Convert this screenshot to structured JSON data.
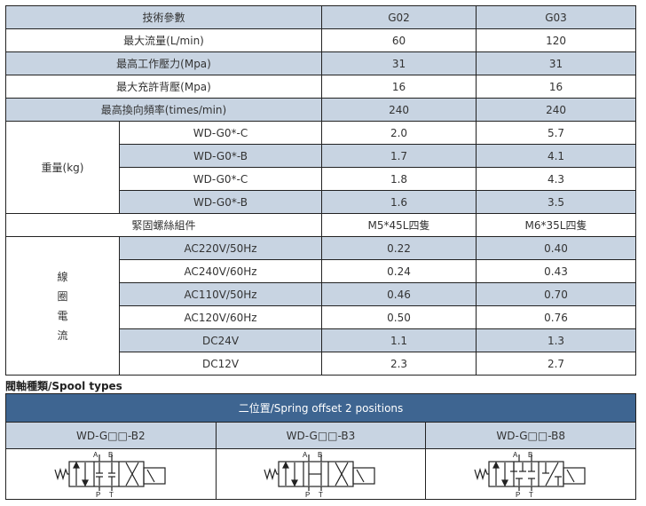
{
  "spec": {
    "header": [
      "技術參數",
      "G02",
      "G03"
    ],
    "rows": [
      {
        "label": "最大流量(L/min)",
        "g02": "60",
        "g03": "120"
      },
      {
        "label": "最高工作壓力(Mpa)",
        "g02": "31",
        "g03": "31"
      },
      {
        "label": "最大充許背壓(Mpa)",
        "g02": "16",
        "g03": "16"
      },
      {
        "label": "最高換向頻率(times/min)",
        "g02": "240",
        "g03": "240"
      }
    ],
    "weight": {
      "label": "重量(kg)",
      "rows": [
        {
          "model": "WD-G0*-C",
          "g02": "2.0",
          "g03": "5.7"
        },
        {
          "model": "WD-G0*-B",
          "g02": "1.7",
          "g03": "4.1"
        },
        {
          "model": "WD-G0*-C",
          "g02": "1.8",
          "g03": "4.3"
        },
        {
          "model": "WD-G0*-B",
          "g02": "1.6",
          "g03": "3.5"
        }
      ]
    },
    "fastener": {
      "label": "緊固螺絲組件",
      "g02": "M5*45L四隻",
      "g03": "M6*35L四隻"
    },
    "coil": {
      "label": [
        "線",
        "圈",
        "電",
        "流"
      ],
      "rows": [
        {
          "v": "AC220V/50Hz",
          "g02": "0.22",
          "g03": "0.40"
        },
        {
          "v": "AC240V/60Hz",
          "g02": "0.24",
          "g03": "0.43"
        },
        {
          "v": "AC110V/50Hz",
          "g02": "0.46",
          "g03": "0.70"
        },
        {
          "v": "AC120V/60Hz",
          "g02": "0.50",
          "g03": "0.76"
        },
        {
          "v": "DC24V",
          "g02": "1.1",
          "g03": "1.3"
        },
        {
          "v": "DC12V",
          "g02": "2.3",
          "g03": "2.7"
        }
      ]
    }
  },
  "spool": {
    "title": "閥軸種類/Spool types",
    "header": "二位置/Spring offset 2 positions",
    "types": [
      "WD-G□□-B2",
      "WD-G□□-B3",
      "WD-G□□-B8"
    ],
    "ports": {
      "a": "A",
      "b": "B",
      "p": "P",
      "t": "T"
    }
  },
  "colors": {
    "shade": "#c8d4e2",
    "header_blue": "#3e6591"
  }
}
